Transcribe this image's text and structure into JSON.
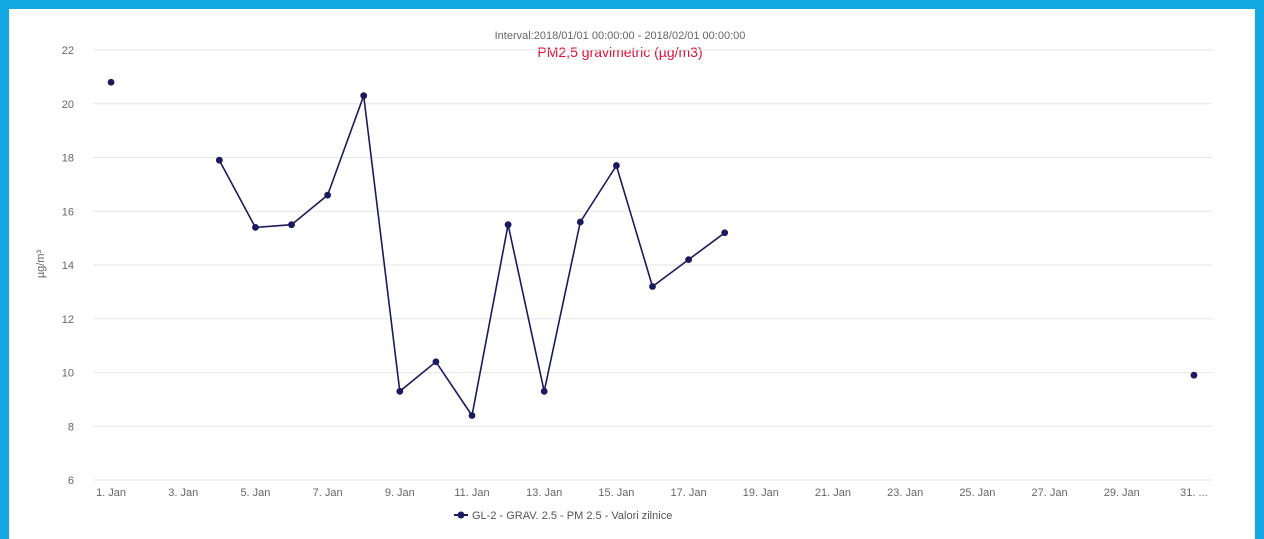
{
  "chart_data": {
    "type": "line",
    "subtitle": "Interval:2018/01/01 00:00:00 - 2018/02/01 00:00:00",
    "title": "PM2,5 gravimetric (µg/m3)",
    "ylabel": "µg/m³",
    "xlabel": "",
    "ylim": [
      6,
      22
    ],
    "yticks": [
      6,
      8,
      10,
      12,
      14,
      16,
      18,
      20,
      22
    ],
    "xlim": [
      1,
      31
    ],
    "xticks": [
      {
        "day": 1,
        "label": "1. Jan"
      },
      {
        "day": 3,
        "label": "3. Jan"
      },
      {
        "day": 5,
        "label": "5. Jan"
      },
      {
        "day": 7,
        "label": "7. Jan"
      },
      {
        "day": 9,
        "label": "9. Jan"
      },
      {
        "day": 11,
        "label": "11. Jan"
      },
      {
        "day": 13,
        "label": "13. Jan"
      },
      {
        "day": 15,
        "label": "15. Jan"
      },
      {
        "day": 17,
        "label": "17. Jan"
      },
      {
        "day": 19,
        "label": "19. Jan"
      },
      {
        "day": 21,
        "label": "21. Jan"
      },
      {
        "day": 23,
        "label": "23. Jan"
      },
      {
        "day": 25,
        "label": "25. Jan"
      },
      {
        "day": 27,
        "label": "27. Jan"
      },
      {
        "day": 29,
        "label": "29. Jan"
      },
      {
        "day": 31,
        "label": "31. ..."
      }
    ],
    "grid": true,
    "legend_position": "bottom-center",
    "series": [
      {
        "name": "GL-2 - GRAV. 2.5 - PM 2.5 - Valori zilnice",
        "color": "#1b1a5e",
        "points": [
          {
            "day": 1,
            "value": 20.8
          },
          {
            "day": 2,
            "value": null
          },
          {
            "day": 3,
            "value": null
          },
          {
            "day": 4,
            "value": 17.9
          },
          {
            "day": 5,
            "value": 15.4
          },
          {
            "day": 6,
            "value": 15.5
          },
          {
            "day": 7,
            "value": 16.6
          },
          {
            "day": 8,
            "value": 20.3
          },
          {
            "day": 9,
            "value": 9.3
          },
          {
            "day": 10,
            "value": 10.4
          },
          {
            "day": 11,
            "value": 8.4
          },
          {
            "day": 12,
            "value": 15.5
          },
          {
            "day": 13,
            "value": 9.3
          },
          {
            "day": 14,
            "value": 15.6
          },
          {
            "day": 15,
            "value": 17.7
          },
          {
            "day": 16,
            "value": 13.2
          },
          {
            "day": 17,
            "value": 14.2
          },
          {
            "day": 18,
            "value": 15.2
          },
          {
            "day": 19,
            "value": null
          },
          {
            "day": 20,
            "value": null
          },
          {
            "day": 21,
            "value": null
          },
          {
            "day": 22,
            "value": null
          },
          {
            "day": 23,
            "value": null
          },
          {
            "day": 24,
            "value": null
          },
          {
            "day": 25,
            "value": null
          },
          {
            "day": 26,
            "value": null
          },
          {
            "day": 27,
            "value": null
          },
          {
            "day": 28,
            "value": null
          },
          {
            "day": 29,
            "value": null
          },
          {
            "day": 30,
            "value": null
          },
          {
            "day": 31,
            "value": 9.9
          }
        ]
      }
    ]
  }
}
